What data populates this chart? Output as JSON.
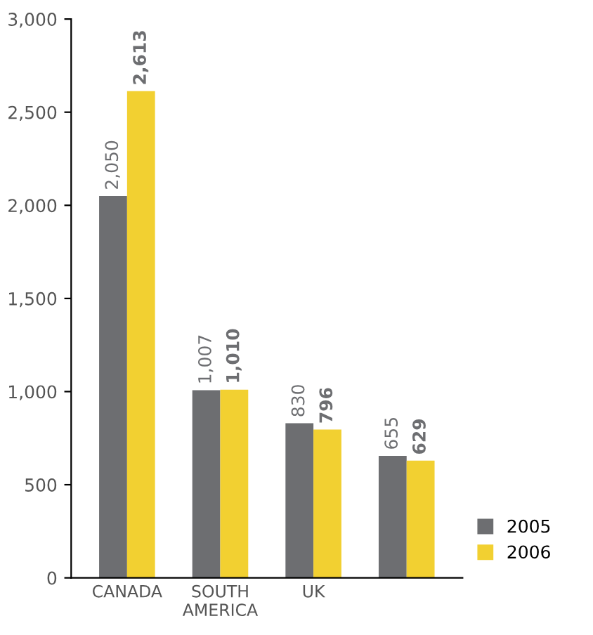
{
  "chart_data": {
    "type": "bar",
    "categories": [
      "CANADA",
      "SOUTH\nAMERICA",
      "UK",
      null
    ],
    "series": [
      {
        "name": "2005",
        "color": "#6d6e71",
        "values": [
          2050,
          1007,
          830,
          655
        ],
        "value_labels": [
          "2,050",
          "1,007",
          "830",
          "655"
        ]
      },
      {
        "name": "2006",
        "color": "#f2d031",
        "values": [
          2613,
          1010,
          796,
          629
        ],
        "value_labels": [
          "2,613",
          "1,010",
          "796",
          "629"
        ]
      }
    ],
    "ylim": [
      0,
      3000
    ],
    "yticks": [
      0,
      500,
      {
        "value": 1000,
        "label": "1,000"
      },
      {
        "value": 1500,
        "label": "1,500"
      },
      {
        "value": 2000,
        "label": "2,000"
      },
      {
        "value": 2500,
        "label": "2,500"
      },
      {
        "value": 3000,
        "label": "3,000"
      }
    ],
    "grid": false,
    "legend": "bottom right"
  }
}
